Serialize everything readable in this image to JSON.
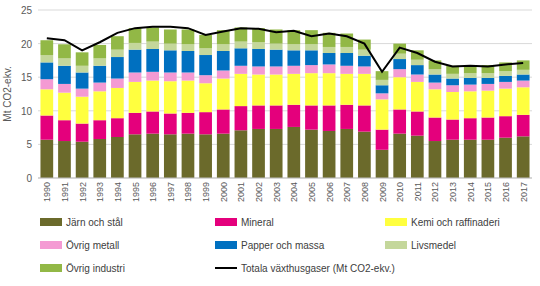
{
  "chart_data": {
    "type": "bar",
    "stacked": true,
    "grid": true,
    "y_label": "Mt CO2-ekv.",
    "categories": [
      "1990",
      "1991",
      "1992",
      "1993",
      "1994",
      "1995",
      "1996",
      "1997",
      "1998",
      "1999",
      "2000",
      "2001",
      "2002",
      "2003",
      "2004",
      "2005",
      "2006",
      "2007",
      "2008",
      "2009",
      "2010",
      "2011",
      "2012",
      "2013",
      "2014",
      "2015",
      "2016",
      "2017"
    ],
    "ylim": [
      0,
      25
    ],
    "yticks": [
      0,
      5,
      10,
      15,
      20,
      25
    ],
    "series": [
      {
        "name": "Järn och stål",
        "color": "#6b6a2b",
        "values": [
          5.7,
          5.5,
          5.4,
          5.8,
          6.1,
          6.5,
          6.6,
          6.5,
          6.6,
          6.5,
          6.6,
          7.1,
          7.3,
          7.3,
          7.6,
          7.2,
          7.0,
          7.3,
          6.9,
          4.2,
          6.6,
          6.3,
          5.5,
          5.7,
          5.7,
          5.7,
          6.0,
          6.2
        ]
      },
      {
        "name": "Mineral",
        "color": "#e4007c",
        "values": [
          3.6,
          3.1,
          2.7,
          2.8,
          2.8,
          3.2,
          3.3,
          3.1,
          3.1,
          3.3,
          3.6,
          3.6,
          3.5,
          3.5,
          3.3,
          3.6,
          3.8,
          3.6,
          3.9,
          3.0,
          3.6,
          3.6,
          3.5,
          3.0,
          3.2,
          3.3,
          3.2,
          3.2
        ]
      },
      {
        "name": "Kemi och raffinaderi",
        "color": "#ffff3f",
        "values": [
          3.9,
          4.1,
          4.0,
          4.3,
          4.5,
          4.6,
          4.6,
          4.8,
          4.8,
          4.3,
          4.6,
          4.8,
          4.6,
          4.6,
          4.6,
          4.8,
          4.8,
          4.6,
          4.7,
          4.5,
          4.8,
          4.4,
          4.2,
          4.1,
          4.0,
          4.0,
          4.1,
          4.1
        ]
      },
      {
        "name": "Övrig metall",
        "color": "#f49ad3",
        "values": [
          1.5,
          1.3,
          1.2,
          1.3,
          1.4,
          1.4,
          1.3,
          1.3,
          1.2,
          1.2,
          1.2,
          1.2,
          1.2,
          1.2,
          1.2,
          1.2,
          1.3,
          1.2,
          1.1,
          0.9,
          1.2,
          1.1,
          1.0,
          1.0,
          1.0,
          1.0,
          1.0,
          1.0
        ]
      },
      {
        "name": "Papper och massa",
        "color": "#0070c0",
        "values": [
          2.5,
          2.7,
          2.4,
          2.5,
          3.2,
          3.4,
          3.4,
          3.3,
          3.2,
          3.0,
          2.9,
          2.6,
          2.6,
          2.5,
          2.3,
          2.2,
          1.7,
          1.9,
          1.6,
          1.2,
          1.5,
          1.4,
          1.2,
          1.0,
          1.0,
          0.9,
          0.9,
          0.9
        ]
      },
      {
        "name": "Livsmedel",
        "color": "#c4d79b",
        "values": [
          1.1,
          1.1,
          1.0,
          1.1,
          1.1,
          1.0,
          1.1,
          1.0,
          1.0,
          1.0,
          1.0,
          1.0,
          1.0,
          0.9,
          0.9,
          0.9,
          0.9,
          0.9,
          0.9,
          0.8,
          0.8,
          0.8,
          0.8,
          0.7,
          0.7,
          0.7,
          0.7,
          0.7
        ]
      },
      {
        "name": "Övrig industri",
        "color": "#92b846",
        "values": [
          2.2,
          2.1,
          2.0,
          2.0,
          2.0,
          2.2,
          2.1,
          2.1,
          2.2,
          2.0,
          2.1,
          2.1,
          2.1,
          2.1,
          2.1,
          2.1,
          2.1,
          2.0,
          1.5,
          1.3,
          1.5,
          1.4,
          1.3,
          1.2,
          1.2,
          1.2,
          1.3,
          1.4
        ]
      },
      {
        "name": "Totala växthusgaser (Mt CO2-ekv.)",
        "color": "#000000",
        "type": "line",
        "values": [
          20.8,
          20.5,
          19.0,
          20.2,
          21.6,
          22.3,
          22.5,
          22.5,
          22.3,
          21.3,
          21.8,
          22.3,
          22.2,
          21.7,
          21.9,
          21.1,
          21.5,
          21.1,
          20.0,
          15.8,
          19.4,
          18.6,
          17.3,
          16.6,
          16.7,
          16.6,
          16.9,
          17.1
        ]
      }
    ]
  }
}
